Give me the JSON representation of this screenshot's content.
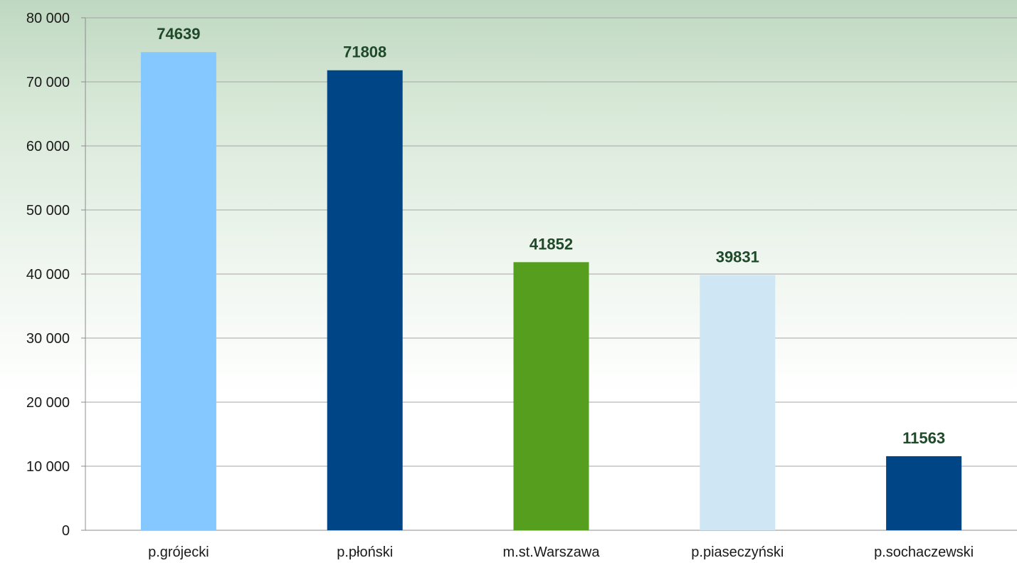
{
  "chart_data": {
    "type": "bar",
    "categories": [
      "p.grójecki",
      "p.płoński",
      "m.st.Warszawa",
      "p.piaseczyński",
      "p.sochaczewski"
    ],
    "values": [
      74639,
      71808,
      41852,
      39831,
      11563
    ],
    "data_labels": [
      "74639",
      "71808",
      "41852",
      "39831",
      "11563"
    ],
    "bar_colors": [
      "#85c8ff",
      "#004586",
      "#569e1d",
      "#cfe6f5",
      "#004586"
    ],
    "ylim": [
      0,
      80000
    ],
    "y_ticks": [
      0,
      10000,
      20000,
      30000,
      40000,
      50000,
      60000,
      70000,
      80000
    ],
    "y_tick_labels": [
      "0",
      "10 000",
      "20 000",
      "30 000",
      "40 000",
      "50 000",
      "60 000",
      "70 000",
      "80 000"
    ],
    "grid": true,
    "legend": "none",
    "title": "",
    "xlabel": "",
    "ylabel": ""
  }
}
